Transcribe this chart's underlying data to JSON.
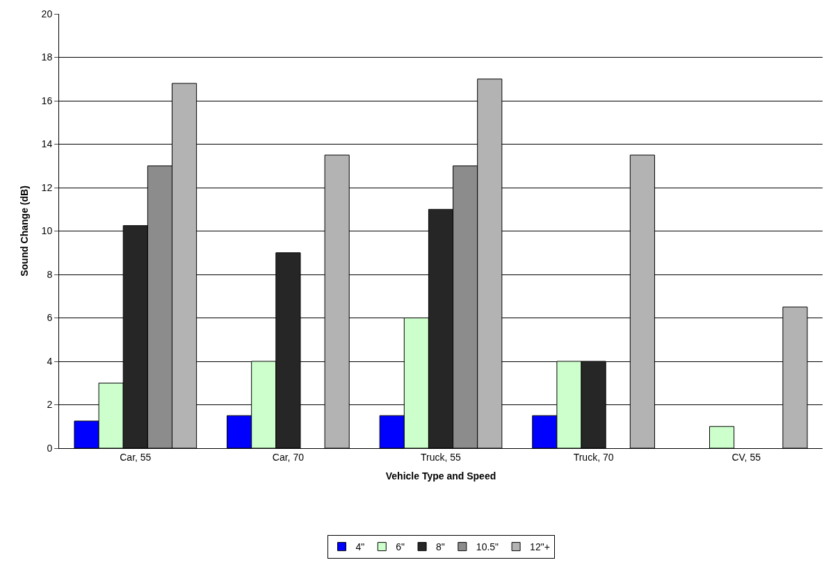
{
  "chart_data": {
    "type": "bar",
    "xlabel": "Vehicle Type and Speed",
    "ylabel": "Sound Change (dB)",
    "categories": [
      "Car, 55",
      "Car, 70",
      "Truck, 55",
      "Truck, 70",
      "CV, 55"
    ],
    "series": [
      {
        "name": "4\"",
        "color": "#0000ff",
        "values": [
          1.25,
          1.5,
          1.5,
          1.5,
          null
        ]
      },
      {
        "name": "6\"",
        "color": "#ccffcc",
        "values": [
          3,
          4,
          6,
          4,
          1
        ]
      },
      {
        "name": "8\"",
        "color": "#262626",
        "values": [
          10.25,
          9,
          11,
          4,
          null
        ]
      },
      {
        "name": "10.5\"",
        "color": "#8c8c8c",
        "values": [
          13,
          null,
          13,
          null,
          null
        ]
      },
      {
        "name": "12\"+",
        "color": "#b3b3b3",
        "values": [
          16.8,
          13.5,
          17,
          13.5,
          6.5
        ]
      }
    ],
    "ylim": [
      0,
      20
    ],
    "yticks": [
      0,
      2,
      4,
      6,
      8,
      10,
      12,
      14,
      16,
      18,
      20
    ],
    "grid": "y",
    "legend": "bottom"
  }
}
